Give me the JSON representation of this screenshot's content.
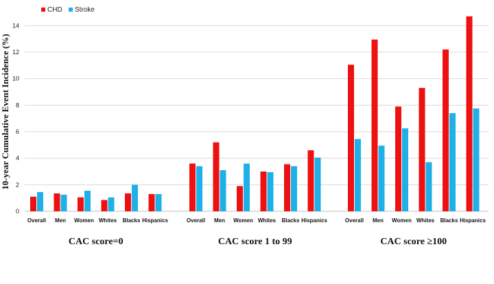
{
  "chart_data": {
    "type": "bar",
    "ylabel": "10-year Cumulative Event  Incidence (%)",
    "ylim": [
      0,
      15
    ],
    "yticks": [
      "0",
      "2",
      "4",
      "6",
      "8",
      "10",
      "12",
      "14"
    ],
    "grid": true,
    "legend_position": "top-left",
    "colors": {
      "CHD": "#ee1111",
      "Stroke": "#1fb0e8"
    },
    "series": [
      {
        "name": "CHD"
      },
      {
        "name": "Stroke"
      }
    ],
    "groups": [
      {
        "label": "CAC score=0",
        "categories": [
          "Overall",
          "Men",
          "Women",
          "Whites",
          "Blacks",
          "Hispanics"
        ],
        "values": {
          "CHD": [
            1.1,
            1.35,
            1.05,
            0.85,
            1.35,
            1.3
          ],
          "Stroke": [
            1.45,
            1.25,
            1.55,
            1.05,
            2.0,
            1.3
          ]
        }
      },
      {
        "label": "CAC score 1 to 99",
        "categories": [
          "Overall",
          "Men",
          "Women",
          "Whites",
          "Blacks",
          "Hispanics"
        ],
        "values": {
          "CHD": [
            3.6,
            5.2,
            1.9,
            3.0,
            3.55,
            4.6
          ],
          "Stroke": [
            3.4,
            3.1,
            3.6,
            2.95,
            3.4,
            4.05
          ]
        }
      },
      {
        "label": "CAC score ≥100",
        "categories": [
          "Overall",
          "Men",
          "Women",
          "Whites",
          "Blacks",
          "Hispanics"
        ],
        "values": {
          "CHD": [
            11.05,
            12.95,
            7.9,
            9.3,
            12.2,
            14.7
          ],
          "Stroke": [
            5.45,
            4.95,
            6.25,
            3.7,
            7.4,
            7.75
          ]
        }
      }
    ]
  }
}
